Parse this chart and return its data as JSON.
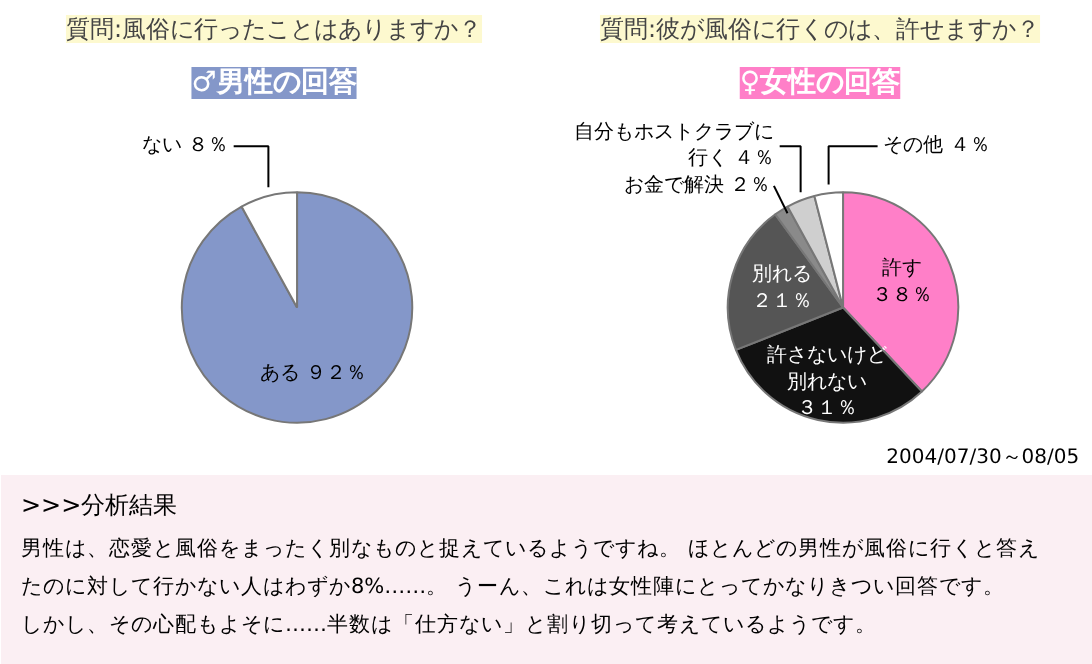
{
  "chart_data": [
    {
      "type": "pie",
      "title": "質問:風俗に行ったことはありますか？",
      "subtitle": "♂男性の回答",
      "categories": [
        "ある",
        "ない"
      ],
      "values": [
        92,
        8
      ],
      "value_labels": [
        "９２％",
        "８％"
      ],
      "colors": [
        "#8497c9",
        "#ffffff"
      ]
    },
    {
      "type": "pie",
      "title": "質問:彼が風俗に行くのは、許せますか？",
      "subtitle": "♀女性の回答",
      "categories": [
        "許す",
        "許さないけど別れない",
        "別れる",
        "お金で解決",
        "自分もホストクラブに行く",
        "その他"
      ],
      "values": [
        38,
        31,
        21,
        2,
        4,
        4
      ],
      "value_labels": [
        "３８％",
        "３１％",
        "２１％",
        "２％",
        "４％",
        "４％"
      ],
      "colors": [
        "#ff7fc8",
        "#111111",
        "#555555",
        "#8a8a8a",
        "#cfcfcf",
        "#ffffff"
      ],
      "annotations": [
        "2004/07/30～08/05"
      ]
    },
    {
      "type": "other",
      "title": ">>>分析結果",
      "annotations": [
        "男性は、恋愛と風俗をまったく別なものと捉えているようですね。 ほとんどの男性が風俗に行くと答え",
        "たのに対して行かない人はわずか8%……。 うーん、これは女性陣にとってかなりきつい回答です。",
        "しかし、その心配もよそに……半数は「仕方ない」と割り切って考えているようです。"
      ]
    }
  ]
}
